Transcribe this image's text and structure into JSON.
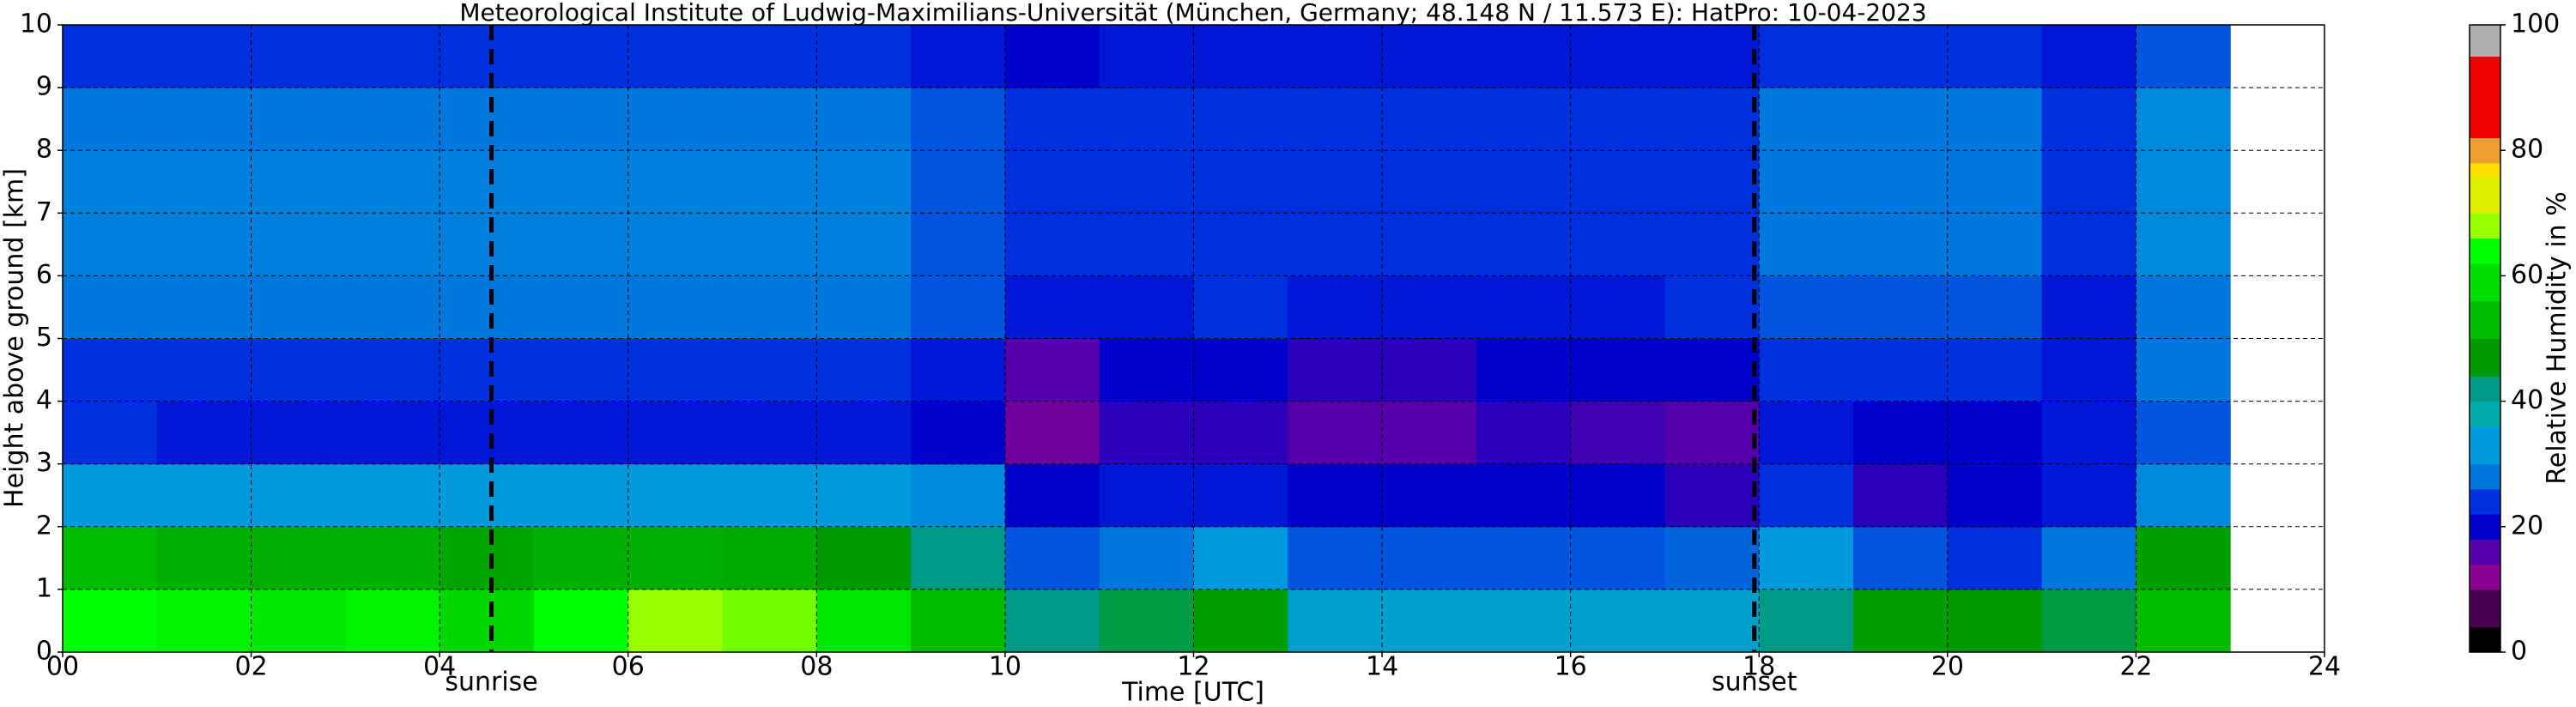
{
  "chart_data": {
    "type": "heatmap",
    "title": "Meteorological Institute of Ludwig-Maximilians-Universität (München, Germany; 48.148 N / 11.573 E):    HatPro: 10-04-2023",
    "x_label": "Time [UTC]",
    "y_label": "Height above ground [km]",
    "colorbar_label": "Relative Humidity in %",
    "xlim": [
      0,
      24
    ],
    "xticks": [
      {
        "value": 0,
        "label": "00"
      },
      {
        "value": 2,
        "label": "02"
      },
      {
        "value": 4,
        "label": "04"
      },
      {
        "value": 6,
        "label": "06"
      },
      {
        "value": 8,
        "label": "08"
      },
      10,
      12,
      14,
      16,
      18,
      20,
      22,
      24
    ],
    "ylim": [
      0,
      10
    ],
    "yticks": [
      0,
      1,
      2,
      3,
      4,
      5,
      6,
      7,
      8,
      9,
      10
    ],
    "clim": [
      0,
      100
    ],
    "cticks": [
      0,
      20,
      40,
      60,
      80,
      100
    ],
    "grid": true,
    "xbins": [
      0,
      1,
      2,
      3,
      4,
      5,
      6,
      7,
      8,
      9,
      10,
      11,
      12,
      13,
      14,
      15,
      16,
      17,
      18,
      19,
      20,
      21,
      22,
      23
    ],
    "ybins": [
      0,
      1,
      2,
      3,
      4,
      5,
      6,
      7,
      8,
      9,
      10
    ],
    "z": [
      [
        62,
        60,
        58,
        60,
        55,
        62,
        66,
        65,
        58,
        50,
        40,
        42,
        45,
        32,
        32,
        32,
        32,
        32,
        40,
        45,
        44,
        42,
        50
      ],
      [
        50,
        48,
        48,
        48,
        46,
        48,
        48,
        47,
        44,
        40,
        24,
        26,
        30,
        24,
        24,
        24,
        24,
        25,
        30,
        24,
        22,
        26,
        45
      ],
      [
        30,
        30,
        30,
        30,
        30,
        30,
        30,
        30,
        30,
        28,
        18,
        20,
        20,
        18,
        18,
        18,
        18,
        16,
        22,
        16,
        18,
        20,
        28
      ],
      [
        22,
        20,
        20,
        20,
        20,
        20,
        20,
        20,
        20,
        18,
        12,
        16,
        16,
        14,
        14,
        16,
        15,
        14,
        20,
        18,
        18,
        20,
        24
      ],
      [
        22,
        22,
        22,
        22,
        22,
        22,
        22,
        22,
        22,
        20,
        14,
        18,
        18,
        16,
        16,
        18,
        18,
        18,
        22,
        22,
        22,
        20,
        26
      ],
      [
        26,
        26,
        26,
        26,
        26,
        26,
        26,
        26,
        26,
        24,
        20,
        20,
        22,
        20,
        20,
        20,
        20,
        22,
        24,
        24,
        24,
        20,
        26
      ],
      [
        27,
        27,
        27,
        27,
        27,
        27,
        27,
        27,
        27,
        24,
        22,
        22,
        22,
        22,
        22,
        22,
        22,
        22,
        26,
        26,
        26,
        22,
        28
      ],
      [
        27,
        27,
        27,
        27,
        27,
        27,
        27,
        27,
        27,
        24,
        22,
        22,
        22,
        22,
        22,
        22,
        22,
        22,
        26,
        26,
        26,
        22,
        28
      ],
      [
        26,
        26,
        26,
        26,
        26,
        26,
        26,
        26,
        26,
        24,
        22,
        22,
        22,
        22,
        22,
        22,
        22,
        22,
        26,
        26,
        26,
        22,
        28
      ],
      [
        22,
        22,
        22,
        22,
        22,
        22,
        22,
        22,
        22,
        20,
        18,
        20,
        20,
        20,
        20,
        20,
        20,
        20,
        22,
        22,
        22,
        20,
        24
      ]
    ],
    "colorscale": [
      {
        "value": 0,
        "color": "#000000"
      },
      {
        "value": 4,
        "color": "#4b0052"
      },
      {
        "value": 10,
        "color": "#88008f"
      },
      {
        "value": 14,
        "color": "#5500aa"
      },
      {
        "value": 18,
        "color": "#0000cc"
      },
      {
        "value": 22,
        "color": "#0030dd"
      },
      {
        "value": 26,
        "color": "#0077dd"
      },
      {
        "value": 30,
        "color": "#0099dd"
      },
      {
        "value": 36,
        "color": "#00aaaa"
      },
      {
        "value": 40,
        "color": "#009988"
      },
      {
        "value": 44,
        "color": "#009900"
      },
      {
        "value": 50,
        "color": "#00bb00"
      },
      {
        "value": 56,
        "color": "#00dd00"
      },
      {
        "value": 62,
        "color": "#00ff00"
      },
      {
        "value": 66,
        "color": "#99ff00"
      },
      {
        "value": 70,
        "color": "#ddee00"
      },
      {
        "value": 76,
        "color": "#ffdd00"
      },
      {
        "value": 78,
        "color": "#f0a030"
      },
      {
        "value": 82,
        "color": "#ee0000"
      },
      {
        "value": 95,
        "color": "#b0b0b0"
      },
      {
        "value": 100,
        "color": "#d8d8d8"
      }
    ],
    "annotations": [
      {
        "x": 4.55,
        "label": "sunrise"
      },
      {
        "x": 17.95,
        "label": "sunset"
      }
    ]
  }
}
